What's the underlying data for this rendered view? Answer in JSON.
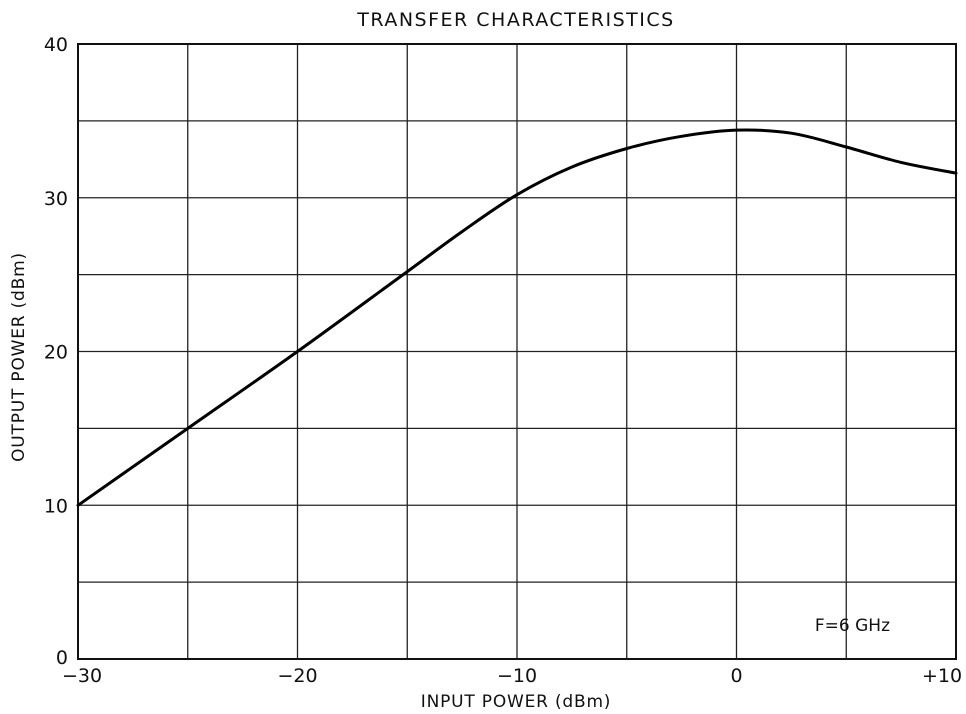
{
  "chart_data": {
    "type": "line",
    "title": "TRANSFER CHARACTERISTICS",
    "xlabel": "INPUT POWER (dBm)",
    "ylabel": "OUTPUT POWER (dBm)",
    "xlim": [
      -30,
      10
    ],
    "ylim": [
      0,
      40
    ],
    "xticks": [
      -30,
      -20,
      -10,
      0,
      10
    ],
    "xtick_labels": [
      "−30",
      "−20",
      "−10",
      "0",
      "+10"
    ],
    "yticks": [
      0,
      10,
      20,
      30,
      40
    ],
    "ytick_labels": [
      "0",
      "10",
      "20",
      "30",
      "40"
    ],
    "grid": true,
    "grid_x_step": 5,
    "grid_y_step": 5,
    "annotation": "F=6 GHz",
    "annotation_position": "bottom-right",
    "line_color": "#000000",
    "series": [
      {
        "x": [
          -30,
          -25,
          -20,
          -15,
          -12.5,
          -10,
          -7.5,
          -5,
          -2.5,
          0,
          2.5,
          5,
          7.5,
          10
        ],
        "y": [
          10,
          15,
          20,
          25.2,
          27.8,
          30.2,
          32,
          33.2,
          34,
          34.4,
          34.2,
          33.3,
          32.3,
          31.6
        ]
      }
    ]
  }
}
